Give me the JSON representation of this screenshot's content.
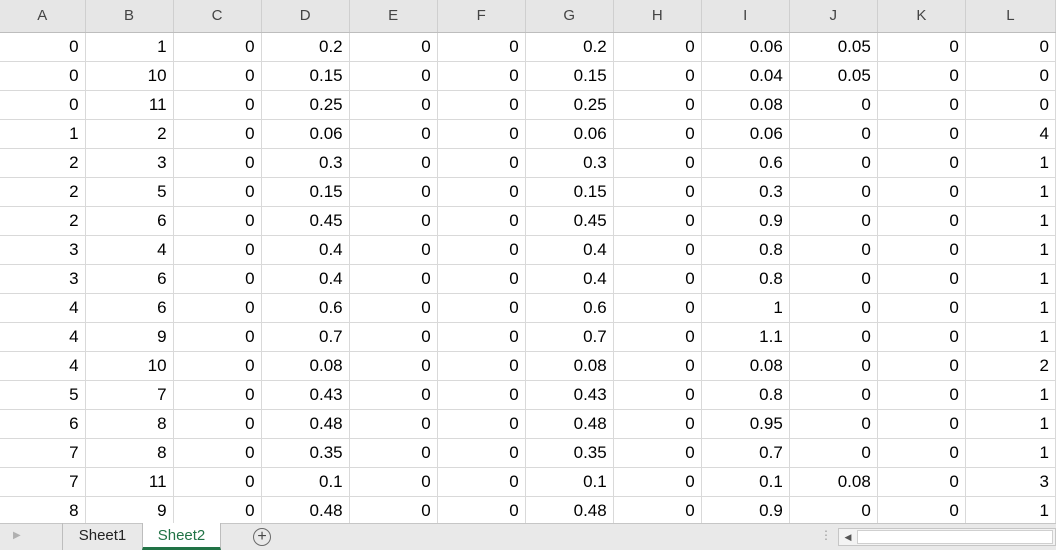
{
  "columns": [
    "A",
    "B",
    "C",
    "D",
    "E",
    "F",
    "G",
    "H",
    "I",
    "J",
    "K",
    "L"
  ],
  "rows": [
    [
      "0",
      "1",
      "0",
      "0.2",
      "0",
      "0",
      "0.2",
      "0",
      "0.06",
      "0.05",
      "0",
      "0"
    ],
    [
      "0",
      "10",
      "0",
      "0.15",
      "0",
      "0",
      "0.15",
      "0",
      "0.04",
      "0.05",
      "0",
      "0"
    ],
    [
      "0",
      "11",
      "0",
      "0.25",
      "0",
      "0",
      "0.25",
      "0",
      "0.08",
      "0",
      "0",
      "0"
    ],
    [
      "1",
      "2",
      "0",
      "0.06",
      "0",
      "0",
      "0.06",
      "0",
      "0.06",
      "0",
      "0",
      "4"
    ],
    [
      "2",
      "3",
      "0",
      "0.3",
      "0",
      "0",
      "0.3",
      "0",
      "0.6",
      "0",
      "0",
      "1"
    ],
    [
      "2",
      "5",
      "0",
      "0.15",
      "0",
      "0",
      "0.15",
      "0",
      "0.3",
      "0",
      "0",
      "1"
    ],
    [
      "2",
      "6",
      "0",
      "0.45",
      "0",
      "0",
      "0.45",
      "0",
      "0.9",
      "0",
      "0",
      "1"
    ],
    [
      "3",
      "4",
      "0",
      "0.4",
      "0",
      "0",
      "0.4",
      "0",
      "0.8",
      "0",
      "0",
      "1"
    ],
    [
      "3",
      "6",
      "0",
      "0.4",
      "0",
      "0",
      "0.4",
      "0",
      "0.8",
      "0",
      "0",
      "1"
    ],
    [
      "4",
      "6",
      "0",
      "0.6",
      "0",
      "0",
      "0.6",
      "0",
      "1",
      "0",
      "0",
      "1"
    ],
    [
      "4",
      "9",
      "0",
      "0.7",
      "0",
      "0",
      "0.7",
      "0",
      "1.1",
      "0",
      "0",
      "1"
    ],
    [
      "4",
      "10",
      "0",
      "0.08",
      "0",
      "0",
      "0.08",
      "0",
      "0.08",
      "0",
      "0",
      "2"
    ],
    [
      "5",
      "7",
      "0",
      "0.43",
      "0",
      "0",
      "0.43",
      "0",
      "0.8",
      "0",
      "0",
      "1"
    ],
    [
      "6",
      "8",
      "0",
      "0.48",
      "0",
      "0",
      "0.48",
      "0",
      "0.95",
      "0",
      "0",
      "1"
    ],
    [
      "7",
      "8",
      "0",
      "0.35",
      "0",
      "0",
      "0.35",
      "0",
      "0.7",
      "0",
      "0",
      "1"
    ],
    [
      "7",
      "11",
      "0",
      "0.1",
      "0",
      "0",
      "0.1",
      "0",
      "0.1",
      "0.08",
      "0",
      "3"
    ],
    [
      "8",
      "9",
      "0",
      "0.48",
      "0",
      "0",
      "0.48",
      "0",
      "0.9",
      "0",
      "0",
      "1"
    ]
  ],
  "sheet_tabs": [
    {
      "label": "Sheet1",
      "active": false
    },
    {
      "label": "Sheet2",
      "active": true
    }
  ],
  "icons": {
    "tab_scroll_left": "triangle-right-icon",
    "add_sheet": "plus-circle-icon",
    "scroll_left": "caret-left-icon"
  },
  "colors": {
    "active_tab_accent": "#217346",
    "header_bg": "#e6e6e6",
    "gridline": "#d9d9d9"
  }
}
